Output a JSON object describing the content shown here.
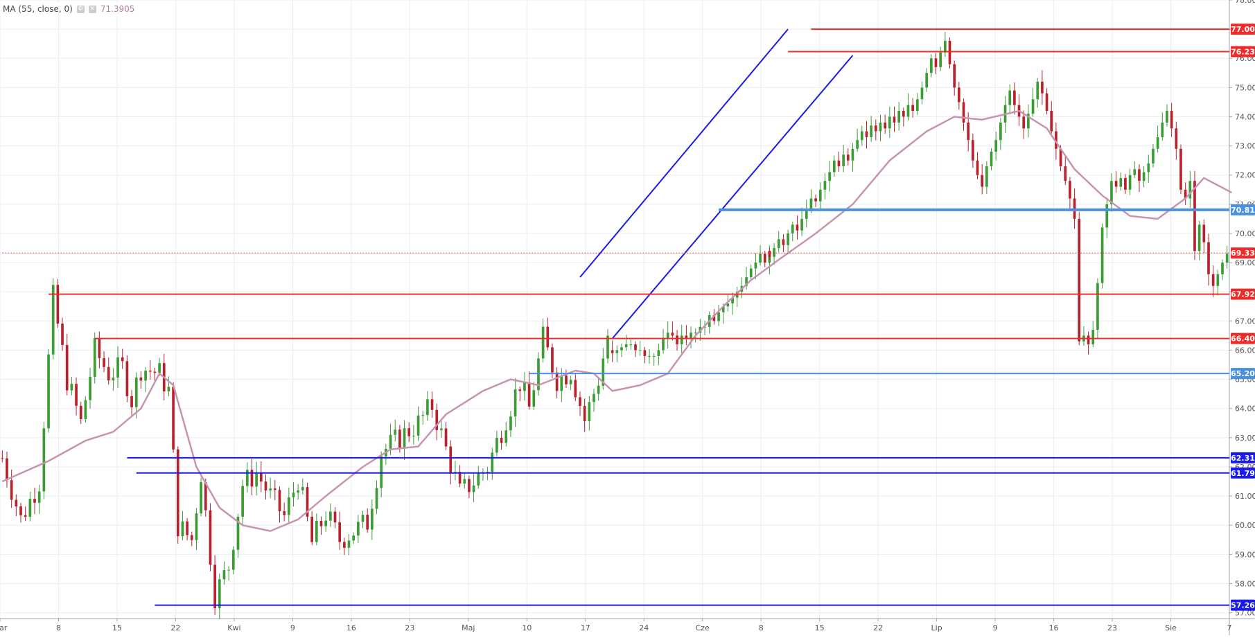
{
  "indicator": {
    "label": "MA (55, close, 0)",
    "value": "71.3905"
  },
  "colors": {
    "up": "#3b9c34",
    "down": "#b8202b",
    "ma": "#c794b0",
    "resistance": "#ee2b2b",
    "support": "#1a1aee",
    "support_light": "#4a8fe0",
    "channel": "#1a1aee",
    "last_price": "#ee2b2b",
    "grid": "#eaeef3"
  },
  "chart_data": {
    "type": "candlestick",
    "y_range": [
      56.8,
      78.0
    ],
    "y_ticks": [
      "57.00",
      "58.00",
      "59.00",
      "60.00",
      "61.00",
      "62.00",
      "63.00",
      "64.00",
      "65.00",
      "66.00",
      "67.00",
      "68.00",
      "69.00",
      "70.00",
      "71.00",
      "72.00",
      "73.00",
      "74.00",
      "75.00",
      "76.00",
      "77.00",
      "78.00"
    ],
    "x_labels": [
      "Mar",
      "8",
      "15",
      "22",
      "Kwi",
      "9",
      "16",
      "23",
      "Maj",
      "10",
      "17",
      "24",
      "Cze",
      "8",
      "15",
      "22",
      "Lip",
      "9",
      "16",
      "23",
      "Sie",
      "7"
    ],
    "ma_series": {
      "name": "MA (55, close, 0)",
      "points": [
        [
          0,
          61.5
        ],
        [
          10,
          62.2
        ],
        [
          18,
          62.9
        ],
        [
          24,
          63.2
        ],
        [
          30,
          64.0
        ],
        [
          34,
          65.2
        ],
        [
          37,
          64.8
        ],
        [
          42,
          62.0
        ],
        [
          47,
          60.6
        ],
        [
          52,
          60.0
        ],
        [
          58,
          59.8
        ],
        [
          64,
          60.2
        ],
        [
          70,
          61.0
        ],
        [
          78,
          62.0
        ],
        [
          84,
          62.6
        ],
        [
          90,
          62.7
        ],
        [
          96,
          63.8
        ],
        [
          104,
          64.6
        ],
        [
          110,
          65.0
        ],
        [
          116,
          64.8
        ],
        [
          124,
          65.3
        ],
        [
          128,
          65.2
        ],
        [
          132,
          64.6
        ],
        [
          138,
          64.8
        ],
        [
          144,
          65.2
        ],
        [
          150,
          66.5
        ],
        [
          156,
          67.5
        ],
        [
          162,
          68.4
        ],
        [
          168,
          69.1
        ],
        [
          176,
          70.0
        ],
        [
          184,
          71.0
        ],
        [
          192,
          72.5
        ],
        [
          200,
          73.5
        ],
        [
          206,
          74.0
        ],
        [
          212,
          73.9
        ],
        [
          220,
          74.2
        ],
        [
          226,
          73.6
        ],
        [
          232,
          72.2
        ],
        [
          238,
          71.3
        ],
        [
          244,
          70.6
        ],
        [
          250,
          70.5
        ],
        [
          256,
          71.2
        ],
        [
          260,
          71.9
        ],
        [
          266,
          71.4
        ]
      ]
    },
    "candles": [
      [
        66.0,
        65.9
      ],
      [
        65.9,
        66.0
      ],
      [
        66.0,
        66.1
      ],
      [
        66.1,
        66.2
      ],
      [
        66.2,
        66.2
      ],
      [
        66.2,
        66.0
      ],
      [
        66.0,
        66.0
      ],
      [
        66.0,
        65.8
      ],
      [
        65.8,
        65.8
      ],
      [
        65.8,
        65.8
      ],
      [
        65.8,
        66.0
      ],
      [
        66.0,
        66.4
      ],
      [
        66.4,
        66.6
      ],
      [
        66.6,
        66.5
      ],
      [
        66.5,
        66.2
      ],
      [
        66.2,
        66.5
      ],
      [
        66.5,
        66.4
      ],
      [
        66.4,
        66.6
      ],
      [
        66.6,
        66.6
      ],
      [
        66.6,
        66.8
      ],
      [
        66.8,
        66.8
      ],
      [
        66.8,
        67.2
      ],
      [
        67.2,
        67.0
      ],
      [
        67.0,
        67.3
      ],
      [
        67.3,
        67.5
      ],
      [
        67.5,
        67.6
      ],
      [
        67.6,
        67.8
      ],
      [
        67.8,
        68.0
      ],
      [
        68.0,
        68.2
      ],
      [
        68.2,
        68.5
      ],
      [
        68.5,
        68.8
      ],
      [
        68.8,
        69.0
      ],
      [
        69.0,
        69.3
      ],
      [
        69.3,
        69.0
      ],
      [
        69.0,
        69.4
      ],
      [
        69.4,
        69.2
      ],
      [
        69.2,
        69.5
      ],
      [
        69.5,
        69.8
      ],
      [
        69.8,
        69.6
      ],
      [
        69.6,
        70.0
      ],
      [
        70.0,
        70.3
      ],
      [
        70.3,
        70.1
      ],
      [
        70.1,
        70.5
      ],
      [
        70.5,
        70.8
      ],
      [
        70.8,
        71.2
      ],
      [
        71.2,
        71.1
      ],
      [
        71.1,
        71.5
      ],
      [
        71.5,
        71.8
      ],
      [
        71.8,
        72.1
      ],
      [
        72.1,
        72.5
      ],
      [
        72.5,
        72.3
      ],
      [
        72.3,
        72.7
      ],
      [
        72.7,
        72.5
      ],
      [
        72.5,
        72.9
      ],
      [
        72.9,
        73.2
      ],
      [
        73.2,
        73.5
      ],
      [
        73.5,
        73.3
      ],
      [
        73.3,
        73.7
      ],
      [
        73.7,
        73.5
      ],
      [
        73.5,
        73.8
      ],
      [
        73.8,
        73.6
      ],
      [
        73.6,
        74.0
      ],
      [
        74.0,
        73.8
      ],
      [
        73.8,
        74.2
      ],
      [
        74.2,
        74.0
      ],
      [
        74.0,
        74.4
      ],
      [
        74.4,
        74.2
      ],
      [
        74.2,
        74.6
      ],
      [
        74.6,
        75.0
      ],
      [
        75.0,
        75.5
      ],
      [
        75.5,
        76.0
      ],
      [
        76.0,
        75.7
      ],
      [
        75.7,
        76.2
      ],
      [
        76.2,
        76.6
      ],
      [
        76.6,
        75.8
      ],
      [
        75.8,
        75.0
      ],
      [
        75.0,
        74.5
      ],
      [
        74.5,
        73.8
      ],
      [
        73.8,
        73.2
      ],
      [
        73.2,
        72.5
      ],
      [
        72.5,
        72.0
      ],
      [
        72.0,
        71.6
      ],
      [
        71.6,
        72.3
      ],
      [
        72.3,
        72.8
      ],
      [
        72.8,
        73.2
      ],
      [
        73.2,
        73.8
      ],
      [
        73.8,
        74.4
      ],
      [
        74.4,
        74.9
      ],
      [
        74.9,
        74.4
      ],
      [
        74.4,
        74.0
      ],
      [
        74.0,
        73.6
      ],
      [
        73.6,
        74.1
      ],
      [
        74.1,
        74.6
      ],
      [
        74.6,
        75.2
      ],
      [
        75.2,
        74.8
      ],
      [
        74.8,
        74.2
      ],
      [
        74.2,
        73.5
      ],
      [
        73.5,
        72.9
      ],
      [
        72.9,
        72.3
      ],
      [
        72.3,
        71.8
      ],
      [
        71.8,
        71.2
      ],
      [
        71.2,
        70.5
      ],
      [
        70.5,
        68.0
      ],
      [
        68.0,
        66.3
      ],
      [
        66.3,
        66.5
      ],
      [
        66.5,
        66.2
      ],
      [
        66.2,
        66.7
      ],
      [
        66.7,
        68.3
      ],
      [
        68.3,
        70.2
      ],
      [
        70.2,
        71.0
      ],
      [
        71.0,
        71.8
      ],
      [
        71.8,
        71.6
      ],
      [
        71.6,
        71.9
      ],
      [
        71.9,
        71.5
      ],
      [
        71.5,
        72.0
      ],
      [
        72.0,
        72.2
      ],
      [
        72.2,
        71.8
      ],
      [
        71.8,
        72.1
      ],
      [
        72.1,
        72.4
      ],
      [
        72.4,
        72.9
      ],
      [
        72.9,
        73.3
      ],
      [
        73.3,
        73.8
      ],
      [
        73.8,
        74.2
      ],
      [
        74.2,
        73.6
      ],
      [
        73.6,
        72.9
      ],
      [
        72.9,
        71.5
      ],
      [
        71.5,
        71.2
      ],
      [
        71.2,
        71.8
      ],
      [
        71.8,
        69.4
      ],
      [
        69.4,
        70.3
      ],
      [
        70.3,
        69.7
      ],
      [
        69.7,
        68.6
      ],
      [
        68.6,
        68.2
      ],
      [
        68.2,
        68.6
      ],
      [
        68.6,
        69.0
      ],
      [
        69.0,
        69.3
      ]
    ],
    "candles_start_index": 132,
    "channel_lines": [
      {
        "from": [
          125,
          68.5
        ],
        "to": [
          170,
          77.0
        ]
      },
      {
        "from": [
          132,
          66.4
        ],
        "to": [
          184,
          76.1
        ]
      }
    ],
    "horizontal_levels": [
      {
        "label": "77.00",
        "value": 77.0,
        "start": 175,
        "role": "resistance"
      },
      {
        "label": "76.23",
        "value": 76.23,
        "start": 170,
        "role": "resistance"
      },
      {
        "label": "70.81",
        "value": 70.81,
        "start": 155,
        "role": "support_thick"
      },
      {
        "label": "69.33",
        "value": 69.33,
        "start": 0,
        "role": "last_price"
      },
      {
        "label": "67.92",
        "value": 67.92,
        "start": 10,
        "role": "resistance"
      },
      {
        "label": "66.40",
        "value": 66.4,
        "start": 20,
        "role": "resistance"
      },
      {
        "label": "65.20",
        "value": 65.2,
        "start": 114,
        "role": "support_light"
      },
      {
        "label": "62.31",
        "value": 62.31,
        "start": 27,
        "role": "support"
      },
      {
        "label": "61.79",
        "value": 61.79,
        "start": 29,
        "role": "support"
      },
      {
        "label": "57.26",
        "value": 57.26,
        "start": 33,
        "role": "support"
      }
    ]
  }
}
